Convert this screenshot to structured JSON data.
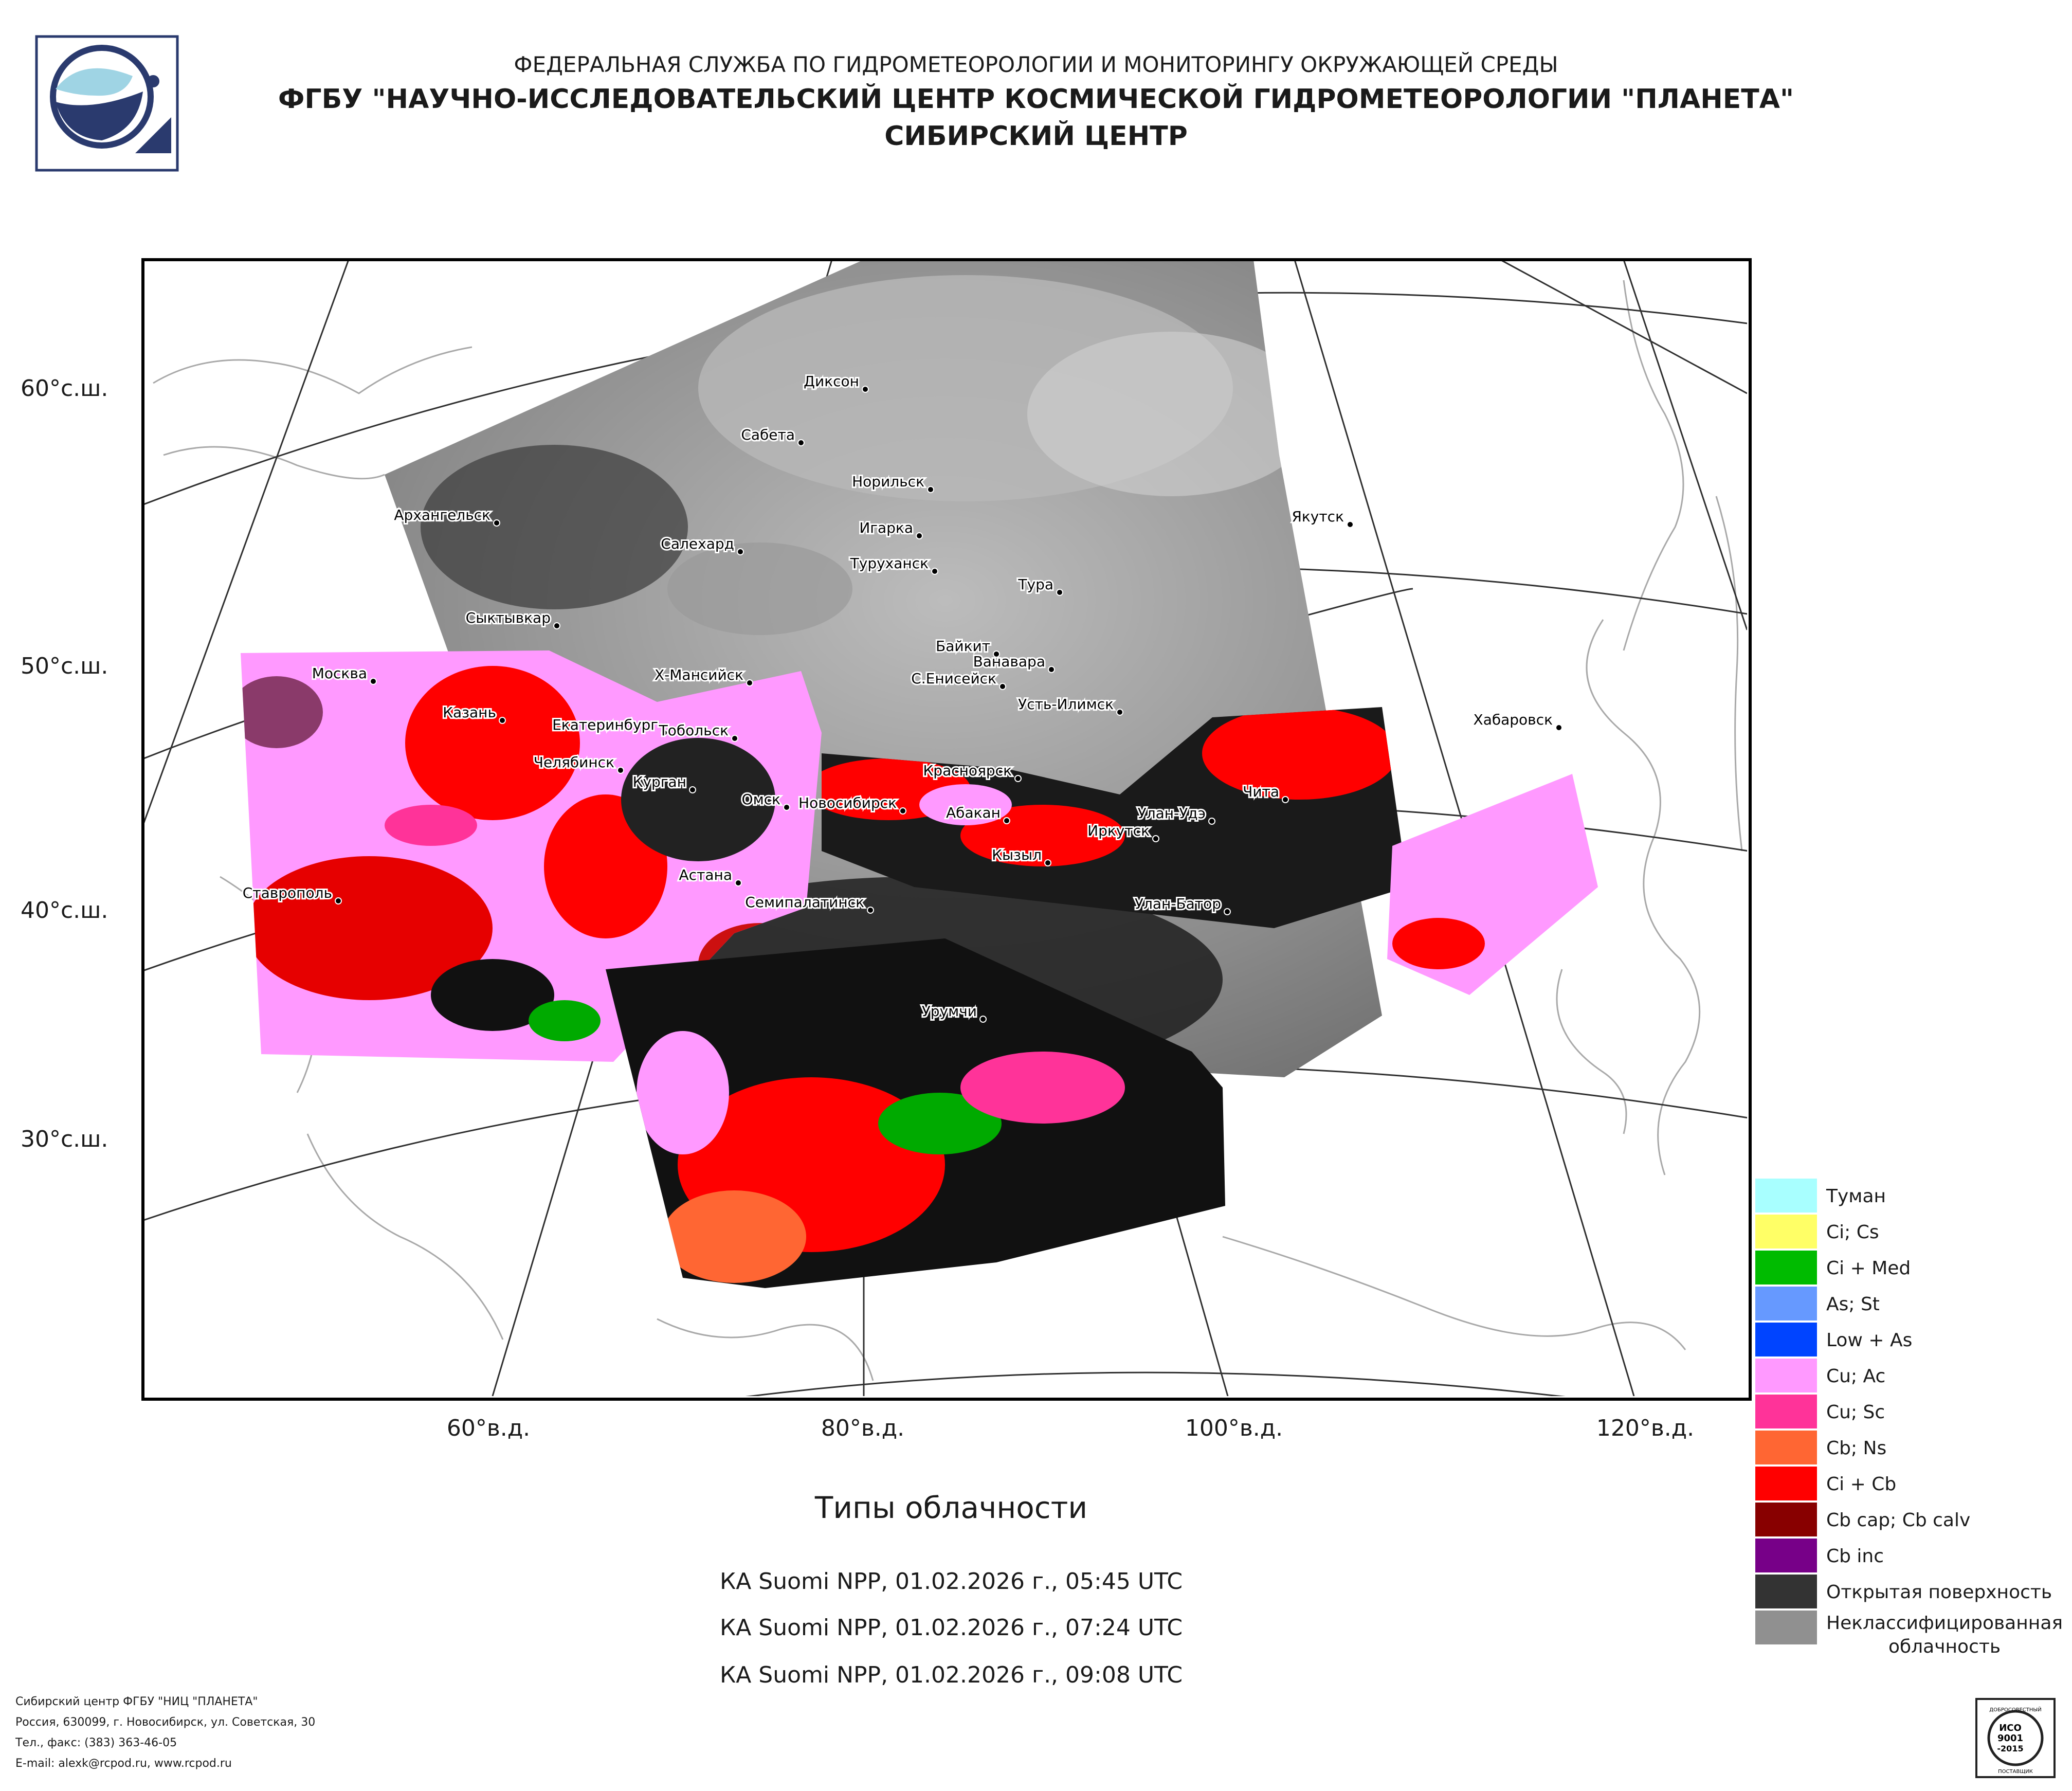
{
  "header": {
    "org": "ФЕДЕРАЛЬНАЯ СЛУЖБА ПО ГИДРОМЕТЕОРОЛОГИИ И МОНИТОРИНГУ ОКРУЖАЮЩЕЙ СРЕДЫ",
    "institute": "ФГБУ \"НАУЧНО-ИССЛЕДОВАТЕЛЬСКИЙ ЦЕНТР КОСМИЧЕСКОЙ ГИДРОМЕТЕОРОЛОГИИ \"ПЛАНЕТА\"",
    "center": "СИБИРСКИЙ ЦЕНТР"
  },
  "axes": {
    "latitudes": [
      "60°с.ш.",
      "50°с.ш.",
      "40°с.ш.",
      "30°с.ш."
    ],
    "longitudes": [
      "60°в.д.",
      "80°в.д.",
      "100°в.д.",
      "120°в.д."
    ]
  },
  "cities": [
    "Диксон",
    "Сабета",
    "Норильск",
    "Архангельск",
    "Игарка",
    "Салехард",
    "Туруханск",
    "Якутск",
    "Тура",
    "Сыктывкар",
    "Байкит",
    "Ванавара",
    "Москва",
    "Х-Мансийск",
    "С.Енисейск",
    "Усть-Илимск",
    "Казань",
    "Екатеринбург",
    "Тобольск",
    "Хабаровск",
    "Челябинск",
    "Курган",
    "Красноярск",
    "Омск",
    "Новосибирск",
    "Чита",
    "Абакан",
    "Улан-Удэ",
    "Иркутск",
    "Кызыл",
    "Астана",
    "Ставрополь",
    "Семипалатинск",
    "Улан-Батор",
    "Урумчи"
  ],
  "map_title": "Типы облачности",
  "passes": [
    "КА Suomi NPP, 01.02.2026 г., 05:45 UTC",
    "КА Suomi NPP, 01.02.2026 г., 07:24 UTC",
    "КА Suomi NPP, 01.02.2026 г., 09:08 UTC"
  ],
  "legend": [
    {
      "label": "Туман",
      "color": "#a8ffff"
    },
    {
      "label": "Ci; Cs",
      "color": "#ffff66"
    },
    {
      "label": "Ci + Med",
      "color": "#00bb00"
    },
    {
      "label": "As; St",
      "color": "#6699ff"
    },
    {
      "label": "Low + As",
      "color": "#0044ff"
    },
    {
      "label": "Cu; Ac",
      "color": "#ff99ff"
    },
    {
      "label": "Cu; Sc",
      "color": "#ff3399"
    },
    {
      "label": "Cb; Ns",
      "color": "#ff6633"
    },
    {
      "label": "Ci + Cb",
      "color": "#ff0000"
    },
    {
      "label": "Cb cap; Cb calv",
      "color": "#880000"
    },
    {
      "label": "Cb inc",
      "color": "#770088"
    },
    {
      "label": "Открытая поверхность",
      "color": "#333333"
    },
    {
      "label": "Неклассифицированная облачность",
      "color": "#909090"
    }
  ],
  "footer": {
    "line1": "Сибирский центр ФГБУ \"НИЦ \"ПЛАНЕТА\"",
    "line2": "Россия, 630099, г. Новосибирск, ул. Советская, 30",
    "line3": "Тел., факс: (383) 363-46-05",
    "line4": "E-mail: alexk@rcpod.ru, www.rcpod.ru"
  },
  "cert": {
    "top": "ДОБРОСОВЕСТНЫЙ",
    "mid1": "ИСО",
    "mid2": "9001",
    "mid3": "-2015",
    "bottom": "ПОСТАВЩИК"
  }
}
